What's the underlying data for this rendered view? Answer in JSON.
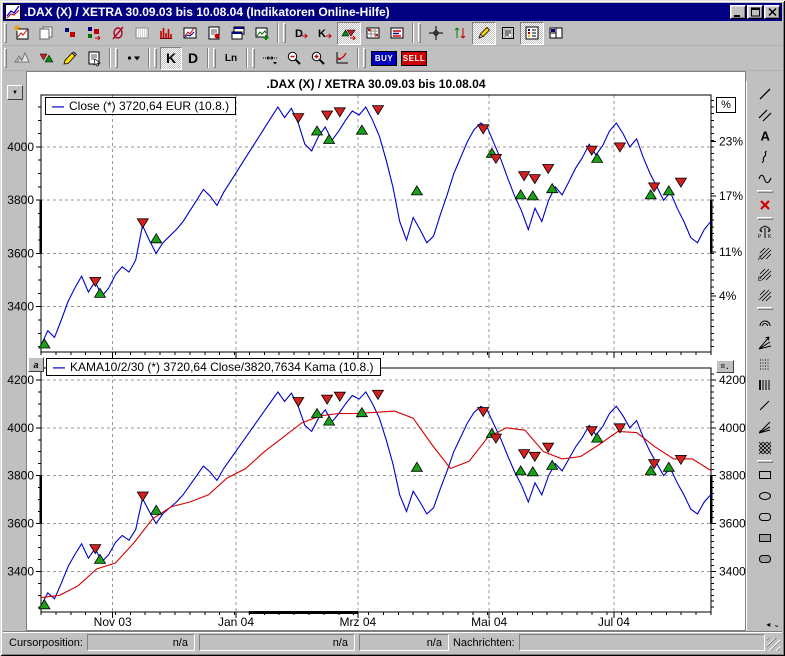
{
  "window": {
    "title": ".DAX (X) / XETRA 30.09.03 bis 10.08.04 (Indikatoren Online-Hilfe)"
  },
  "toolbar_row1": [
    {
      "name": "new-chart-button",
      "icon": "chart-new"
    },
    {
      "name": "copy-layout-button",
      "icon": "copy-pages"
    },
    {
      "name": "objects-button",
      "icon": "squares-small"
    },
    {
      "name": "move-objects-button",
      "icon": "squares-move"
    },
    {
      "name": "hide-scale-button",
      "icon": "hide-scale"
    },
    {
      "name": "grid-button",
      "icon": "grid-pattern"
    },
    {
      "name": "volume-button",
      "icon": "histogram"
    },
    {
      "name": "chart-type-button",
      "icon": "chart-line"
    },
    {
      "name": "report-button",
      "icon": "page-report"
    },
    {
      "name": "cascade-windows-button",
      "icon": "windows-cascade"
    },
    {
      "name": "save-image-button",
      "icon": "image-add"
    },
    {
      "sep": true
    },
    {
      "name": "daily-signals-button",
      "icon": "d-arrow"
    },
    {
      "name": "candle-signals-button",
      "icon": "k-arrow"
    },
    {
      "name": "show-signals-button",
      "icon": "signal-triangles",
      "pressed": true
    },
    {
      "name": "signal-table-button",
      "icon": "signal-grid"
    },
    {
      "name": "signal-lines-button",
      "icon": "signal-lines"
    },
    {
      "sep": true
    },
    {
      "name": "crosshair-button",
      "icon": "crosshair"
    },
    {
      "name": "auto-scale-button",
      "icon": "scale-arrows"
    },
    {
      "name": "draw-mode-button",
      "icon": "draw-pencil",
      "pressed": true
    },
    {
      "name": "notes-button",
      "icon": "notes"
    },
    {
      "name": "legend-toggle-button",
      "icon": "legend-list",
      "pressed": true
    },
    {
      "name": "layout-button",
      "icon": "layout-split"
    }
  ],
  "toolbar_row2": [
    {
      "name": "zigzag-indicator-button",
      "icon": "mountains"
    },
    {
      "name": "signals-toggle-button",
      "icon": "triangles-rg"
    },
    {
      "name": "marker-pen-button",
      "icon": "marker-pen"
    },
    {
      "name": "properties-button",
      "icon": "properties"
    },
    {
      "sep": true
    },
    {
      "name": "line-style-button",
      "icon": "line-style"
    },
    {
      "sep": true
    },
    {
      "name": "candle-chart-button",
      "label": "K",
      "cls": "big",
      "pressed": true
    },
    {
      "name": "line-chart-button",
      "label": "D",
      "cls": "big"
    },
    {
      "sep": true
    },
    {
      "name": "log-scale-button",
      "label": "Ln",
      "cls": "smb"
    },
    {
      "sep": true
    },
    {
      "name": "bar-spacing-button",
      "icon": "h-zoom"
    },
    {
      "name": "zoom-out-button",
      "icon": "zoom-out"
    },
    {
      "name": "zoom-in-button",
      "icon": "zoom-in"
    },
    {
      "name": "zoom-reset-button",
      "icon": "zoom-reset"
    },
    {
      "sep": true
    },
    {
      "name": "buy-button",
      "label": "BUY",
      "kind": "buy"
    },
    {
      "name": "sell-button",
      "label": "SELL",
      "kind": "sell"
    }
  ],
  "right_toolbar": [
    {
      "name": "trendline-tool",
      "icon": "r-line"
    },
    {
      "name": "parallel-lines-tool",
      "icon": "r-parallel"
    },
    {
      "name": "text-tool",
      "icon": "r-text"
    },
    {
      "name": "freehand-tool",
      "icon": "r-squiggle"
    },
    {
      "name": "curve-tool",
      "icon": "r-wave"
    },
    {
      "sep": true
    },
    {
      "name": "delete-object-tool",
      "icon": "r-delete"
    },
    {
      "sep": true
    },
    {
      "name": "pitchfork-tool",
      "icon": "r-pitchfork"
    },
    {
      "name": "gann-tool-1",
      "icon": "r-gann-a"
    },
    {
      "name": "gann-tool-2",
      "icon": "r-gann-e"
    },
    {
      "name": "gann-tool-3",
      "icon": "r-gann-d"
    },
    {
      "sep": true
    },
    {
      "name": "arcs-tool",
      "icon": "r-arcs"
    },
    {
      "name": "fan-lines-tool",
      "icon": "r-fan"
    },
    {
      "name": "fibonacci-retracement-tool",
      "icon": "r-fibo"
    },
    {
      "name": "vertical-lines-tool",
      "icon": "r-vlines"
    },
    {
      "name": "diagonal-line-tool",
      "icon": "r-diag"
    },
    {
      "name": "speed-lines-tool",
      "icon": "r-speed"
    },
    {
      "name": "gann-grid-tool",
      "icon": "r-grid"
    },
    {
      "sep": true
    },
    {
      "name": "rectangle-tool",
      "icon": "r-rect"
    },
    {
      "name": "ellipse-tool",
      "icon": "r-ellipse"
    },
    {
      "name": "rounded-rect-tool",
      "icon": "r-roundrect"
    },
    {
      "name": "filled-rect-tool",
      "icon": "r-rectfill"
    },
    {
      "name": "filled-rounded-rect-tool",
      "icon": "r-roundfill"
    }
  ],
  "rtools_scroll": {
    "left": "◂",
    "down": "⌄"
  },
  "chart_area": {
    "collapse_glyph": "▼",
    "annotation_glyph": "a",
    "scale_glyph": "=.",
    "legend_sample": "—"
  },
  "chart_data": {
    "type": "line",
    "title": ".DAX (X) / XETRA 30.09.03 bis 10.08.04",
    "x_axis": {
      "months": [
        {
          "label": "Nov 03",
          "f": 0.107
        },
        {
          "label": "Jan 04",
          "f": 0.291
        },
        {
          "label": "Mrz 04",
          "f": 0.473
        },
        {
          "label": "Mai 04",
          "f": 0.669
        },
        {
          "label": "Jul 04",
          "f": 0.855
        }
      ]
    },
    "panels": [
      {
        "id": "price",
        "legend": "Close (*) 3720,64 EUR (10.8.)",
        "ylim": [
          3230,
          4195
        ],
        "yticks": [
          4000,
          3800,
          3600,
          3400
        ],
        "percent_box": "%",
        "right_percent_labels": [
          {
            "label": "23%",
            "v": 4020
          },
          {
            "label": "17%",
            "v": 3815
          },
          {
            "label": "11%",
            "v": 3605
          },
          {
            "label": "4%",
            "v": 3440
          }
        ]
      },
      {
        "id": "kama",
        "legend": "KAMA10/2/30 (*) 3720,64 Close/3820,7634 Kama (10.8.)",
        "ylim": [
          3230,
          4250
        ],
        "yticks": [
          4200,
          4000,
          3800,
          3600,
          3400
        ],
        "axis_button": "=."
      }
    ],
    "series": [
      {
        "name": "Close",
        "color": "#0000cd",
        "values": [
          3255,
          3310,
          3285,
          3350,
          3420,
          3470,
          3515,
          3455,
          3495,
          3440,
          3470,
          3520,
          3550,
          3530,
          3575,
          3705,
          3650,
          3600,
          3640,
          3665,
          3690,
          3720,
          3760,
          3800,
          3840,
          3815,
          3780,
          3830,
          3870,
          3910,
          3950,
          3990,
          4030,
          4070,
          4110,
          4150,
          4110,
          4145,
          4090,
          4010,
          3985,
          4040,
          4075,
          4025,
          4060,
          4100,
          4135,
          4120,
          4150,
          4100,
          4040,
          3950,
          3850,
          3720,
          3650,
          3735,
          3690,
          3640,
          3665,
          3745,
          3820,
          3900,
          3960,
          4020,
          4065,
          4090,
          4070,
          4010,
          3950,
          3880,
          3815,
          3760,
          3690,
          3770,
          3720,
          3800,
          3850,
          3820,
          3870,
          3920,
          3960,
          4010,
          3970,
          4005,
          4060,
          4090,
          4050,
          4000,
          4030,
          3960,
          3900,
          3850,
          3800,
          3830,
          3770,
          3720,
          3660,
          3640,
          3690,
          3721
        ]
      },
      {
        "name": "Kama",
        "color": "#d40000",
        "values": [
          3290,
          3300,
          3340,
          3410,
          3435,
          3520,
          3620,
          3670,
          3690,
          3720,
          3790,
          3830,
          3900,
          3960,
          4020,
          4050,
          4060,
          4060,
          4065,
          4070,
          4040,
          3930,
          3830,
          3860,
          3960,
          4000,
          3990,
          3900,
          3870,
          3880,
          3930,
          3985,
          3980,
          3920,
          3870,
          3870,
          3821
        ]
      }
    ],
    "markers": {
      "buy_color": "#18a018",
      "sell_color": "#d42020",
      "points": [
        [
          0.005,
          3260,
          "b"
        ],
        [
          0.081,
          3495,
          "s"
        ],
        [
          0.088,
          3450,
          "b"
        ],
        [
          0.152,
          3715,
          "s"
        ],
        [
          0.172,
          3655,
          "b"
        ],
        [
          0.384,
          4110,
          "s"
        ],
        [
          0.412,
          4060,
          "b"
        ],
        [
          0.427,
          4120,
          "s"
        ],
        [
          0.43,
          4028,
          "b"
        ],
        [
          0.446,
          4132,
          "s"
        ],
        [
          0.479,
          4063,
          "b"
        ],
        [
          0.503,
          4140,
          "s"
        ],
        [
          0.561,
          3835,
          "b"
        ],
        [
          0.66,
          4068,
          "s"
        ],
        [
          0.673,
          3976,
          "b"
        ],
        [
          0.679,
          3957,
          "s"
        ],
        [
          0.716,
          3820,
          "b"
        ],
        [
          0.721,
          3892,
          "s"
        ],
        [
          0.734,
          3816,
          "b"
        ],
        [
          0.737,
          3881,
          "s"
        ],
        [
          0.757,
          3919,
          "s"
        ],
        [
          0.763,
          3843,
          "b"
        ],
        [
          0.822,
          3988,
          "s"
        ],
        [
          0.83,
          3957,
          "b"
        ],
        [
          0.864,
          4000,
          "s"
        ],
        [
          0.91,
          3820,
          "b"
        ],
        [
          0.915,
          3850,
          "s"
        ],
        [
          0.937,
          3835,
          "b"
        ],
        [
          0.955,
          3868,
          "s"
        ]
      ]
    },
    "highlight_band": [
      3600,
      3800
    ],
    "x_highlight": [
      0.31,
      0.473
    ],
    "grid_color": "#999999"
  },
  "statusbar": {
    "cursor_label": "Cursorposition:",
    "values": [
      "n/a",
      "n/a",
      "n/a"
    ],
    "news_label": "Nachrichten:",
    "news_value": ""
  }
}
